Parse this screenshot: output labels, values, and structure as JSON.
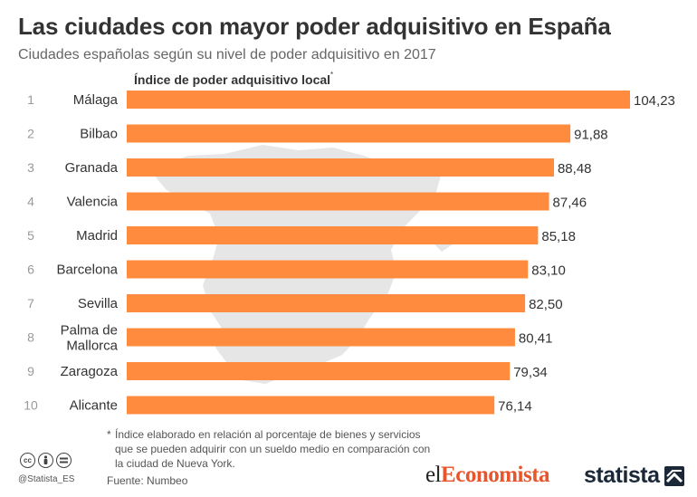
{
  "header": {
    "title": "Las ciudades con mayor poder adquisitivo en España",
    "subtitle": "Ciudades españolas según su nivel de poder adquisitivo en 2017"
  },
  "chart_data": {
    "type": "bar",
    "orientation": "horizontal",
    "axis_title": "Índice de poder adquisitivo local",
    "axis_title_mark": "*",
    "ranks": [
      "1",
      "2",
      "3",
      "4",
      "5",
      "6",
      "7",
      "8",
      "9",
      "10"
    ],
    "categories": [
      "Málaga",
      "Bilbao",
      "Granada",
      "Valencia",
      "Madrid",
      "Barcelona",
      "Sevilla",
      "Palma de Mallorca",
      "Zaragoza",
      "Alicante"
    ],
    "values": [
      104.23,
      91.88,
      88.48,
      87.46,
      85.18,
      83.1,
      82.5,
      80.41,
      79.34,
      76.14
    ],
    "value_labels": [
      "104,23",
      "91,88",
      "88,48",
      "87,46",
      "85,18",
      "83,10",
      "82,50",
      "80,41",
      "79,34",
      "76,14"
    ],
    "xlim": [
      0,
      104.23
    ],
    "bar_color": "#fe8b3e",
    "background_map": "spain-map-silhouette"
  },
  "footnote": {
    "marker": "*",
    "text": "Índice elaborado en relación al porcentaje de bienes y servicios que se pueden adquirir con un sueldo medio en comparación con la ciudad de Nueva York."
  },
  "footer": {
    "license_icons": [
      "cc-icon",
      "attribution-icon",
      "no-derivatives-icon"
    ],
    "handle": "@Statista_ES",
    "source": "Fuente: Numbeo",
    "publisher_logo": "elEconomista",
    "publisher_logo_parts": [
      "el",
      "Economista"
    ],
    "brand_logo": "statista",
    "accent_color": "#e8542b",
    "brand_color": "#1a2838"
  }
}
